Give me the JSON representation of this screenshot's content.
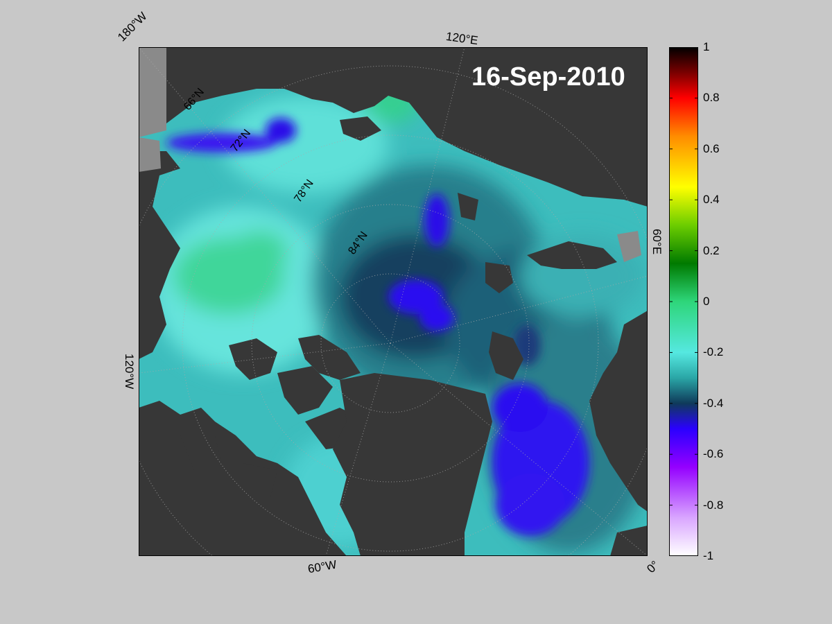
{
  "map": {
    "date_label": "16-Sep-2010",
    "longitude_labels": [
      "180°W",
      "120°E",
      "60°E",
      "0°",
      "60°W",
      "120°W"
    ],
    "latitude_labels": [
      "66°N",
      "72°N",
      "78°N",
      "84°N"
    ],
    "colors": {
      "land": "#373737",
      "coast_shelf": "#8a8a8a",
      "background": "#c8c8c8"
    }
  },
  "colorbar": {
    "ticks": [
      "1",
      "0.8",
      "0.6",
      "0.4",
      "0.2",
      "0",
      "-0.2",
      "-0.4",
      "-0.6",
      "-0.8",
      "-1"
    ],
    "range": [
      -1,
      1
    ],
    "stops": [
      {
        "value": 1.0,
        "color": "#000000"
      },
      {
        "value": 0.9,
        "color": "#7a0000"
      },
      {
        "value": 0.8,
        "color": "#ff0000"
      },
      {
        "value": 0.65,
        "color": "#ff8c00"
      },
      {
        "value": 0.45,
        "color": "#ffff00"
      },
      {
        "value": 0.3,
        "color": "#6ccd00"
      },
      {
        "value": 0.15,
        "color": "#007a00"
      },
      {
        "value": 0.0,
        "color": "#2ed67a"
      },
      {
        "value": -0.2,
        "color": "#55e8e0"
      },
      {
        "value": -0.3,
        "color": "#2aa6a6"
      },
      {
        "value": -0.4,
        "color": "#0f3a5a"
      },
      {
        "value": -0.5,
        "color": "#2a00ff"
      },
      {
        "value": -0.65,
        "color": "#9400ff"
      },
      {
        "value": -0.85,
        "color": "#d9a6ff"
      },
      {
        "value": -1.0,
        "color": "#ffffff"
      }
    ]
  }
}
